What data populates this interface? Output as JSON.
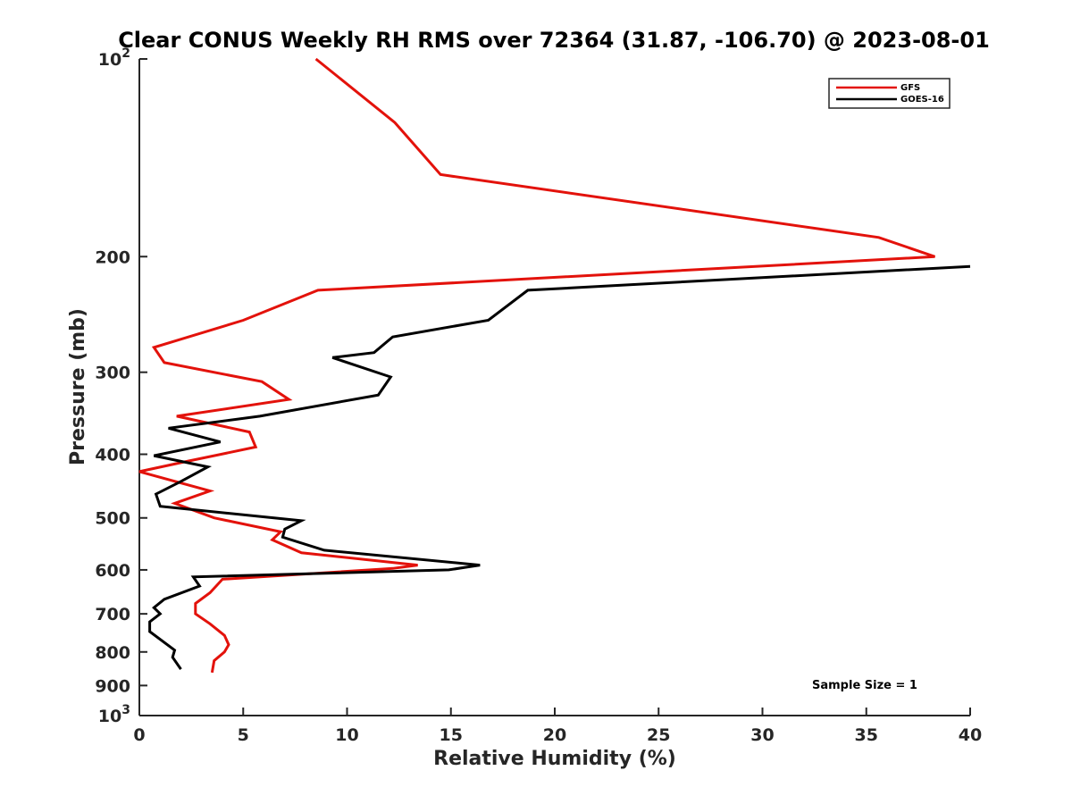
{
  "chart_data": {
    "type": "line",
    "title": "Clear CONUS Weekly RH RMS over 72364 (31.87, -106.70) @ 2023-08-01",
    "xlabel": "Relative Humidity (%)",
    "ylabel": "Pressure (mb)",
    "xlim": [
      0,
      40
    ],
    "ylim": [
      1000,
      100
    ],
    "y_scale": "log",
    "y_reversed": true,
    "x_ticks": [
      "0",
      "5",
      "10",
      "15",
      "20",
      "25",
      "30",
      "35",
      "40"
    ],
    "y_ticks": [
      {
        "value": 100,
        "base": "10",
        "exp": "2"
      },
      {
        "value": 200,
        "label": "200"
      },
      {
        "value": 300,
        "label": "300"
      },
      {
        "value": 400,
        "label": "400"
      },
      {
        "value": 500,
        "label": "500"
      },
      {
        "value": 600,
        "label": "600"
      },
      {
        "value": 700,
        "label": "700"
      },
      {
        "value": 800,
        "label": "800"
      },
      {
        "value": 900,
        "label": "900"
      },
      {
        "value": 1000,
        "base": "10",
        "exp": "3"
      }
    ],
    "legend_position": "top-right",
    "annotation": "Sample Size = 1",
    "series": [
      {
        "name": "GFS",
        "color": "#e3120b",
        "points": [
          [
            8.5,
            100
          ],
          [
            12.3,
            125
          ],
          [
            14.5,
            150
          ],
          [
            35.6,
            187
          ],
          [
            38.3,
            200
          ],
          [
            8.6,
            225
          ],
          [
            5.0,
            250
          ],
          [
            0.7,
            275
          ],
          [
            1.2,
            290
          ],
          [
            5.9,
            310
          ],
          [
            7.2,
            330
          ],
          [
            1.8,
            350
          ],
          [
            5.3,
            370
          ],
          [
            5.6,
            390
          ],
          [
            2.3,
            410
          ],
          [
            0.0,
            425
          ],
          [
            3.4,
            455
          ],
          [
            1.7,
            475
          ],
          [
            3.6,
            500
          ],
          [
            6.8,
            525
          ],
          [
            6.4,
            540
          ],
          [
            7.8,
            565
          ],
          [
            13.4,
            590
          ],
          [
            12.2,
            597
          ],
          [
            4.0,
            620
          ],
          [
            3.4,
            650
          ],
          [
            2.7,
            675
          ],
          [
            2.7,
            700
          ],
          [
            3.4,
            725
          ],
          [
            4.1,
            755
          ],
          [
            4.3,
            780
          ],
          [
            4.1,
            800
          ],
          [
            3.6,
            825
          ],
          [
            3.5,
            860
          ]
        ]
      },
      {
        "name": "GOES-16",
        "color": "#000000",
        "points": [
          [
            40.0,
            207
          ],
          [
            18.7,
            225
          ],
          [
            16.8,
            250
          ],
          [
            12.2,
            265
          ],
          [
            11.3,
            280
          ],
          [
            9.3,
            285
          ],
          [
            12.1,
            305
          ],
          [
            11.5,
            325
          ],
          [
            5.8,
            350
          ],
          [
            1.4,
            365
          ],
          [
            3.9,
            383
          ],
          [
            0.7,
            402
          ],
          [
            3.3,
            418
          ],
          [
            2.0,
            440
          ],
          [
            0.8,
            460
          ],
          [
            1.0,
            480
          ],
          [
            7.8,
            505
          ],
          [
            7.0,
            520
          ],
          [
            6.9,
            535
          ],
          [
            8.9,
            560
          ],
          [
            16.4,
            590
          ],
          [
            14.9,
            600
          ],
          [
            2.6,
            615
          ],
          [
            2.9,
            635
          ],
          [
            1.2,
            665
          ],
          [
            0.7,
            685
          ],
          [
            1.0,
            700
          ],
          [
            0.5,
            720
          ],
          [
            0.5,
            745
          ],
          [
            1.7,
            795
          ],
          [
            1.6,
            815
          ],
          [
            2.0,
            850
          ]
        ]
      }
    ]
  }
}
